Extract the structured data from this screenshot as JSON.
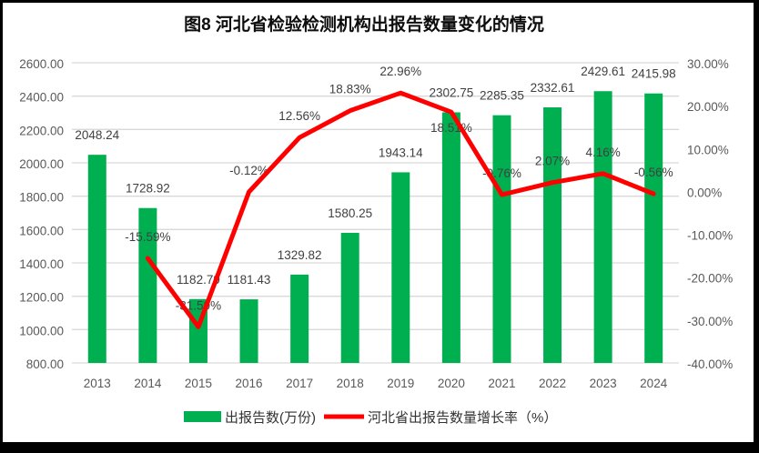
{
  "window": {
    "frame_color": "#000000",
    "paper_color": "#ffffff"
  },
  "chart_data": {
    "type": "bar+line",
    "title": "图8 河北省检验检测机构出报告数量变化的情况",
    "categories": [
      "2013",
      "2014",
      "2015",
      "2016",
      "2017",
      "2018",
      "2019",
      "2020",
      "2021",
      "2022",
      "2023",
      "2024"
    ],
    "series": [
      {
        "name": "出报告数(万份)",
        "type": "bar",
        "axis": "left",
        "values": [
          2048.24,
          1728.92,
          1182.79,
          1181.43,
          1329.82,
          1580.25,
          1943.14,
          2302.75,
          2285.35,
          2332.61,
          2429.61,
          2415.98
        ],
        "labels": [
          "2048.24",
          "1728.92",
          "1182.79",
          "1181.43",
          "1329.82",
          "1580.25",
          "1943.14",
          "2302.75",
          "2285.35",
          "2332.61",
          "2429.61",
          "2415.98"
        ]
      },
      {
        "name": "河北省出报告数量增长率（%）",
        "type": "line",
        "axis": "right",
        "values": [
          null,
          -15.59,
          -31.59,
          -0.12,
          12.56,
          18.83,
          22.96,
          18.51,
          -0.76,
          2.07,
          4.16,
          -0.56
        ],
        "labels": [
          null,
          "-15.59%",
          "-31.59%",
          "-0.12%",
          "12.56%",
          "18.83%",
          "22.96%",
          "18.51%",
          "-0.76%",
          "2.07%",
          "4.16%",
          "-0.56%"
        ],
        "label_positions": [
          null,
          "above",
          "above",
          "above",
          "above",
          "above",
          "above",
          "below",
          "above",
          "above",
          "above",
          "above"
        ]
      }
    ],
    "left_axis": {
      "min": 800,
      "max": 2600,
      "step": 200,
      "tick_labels": [
        "2600.00",
        "2400.00",
        "2200.00",
        "2000.00",
        "1800.00",
        "1600.00",
        "1400.00",
        "1200.00",
        "1000.00",
        "800.00"
      ]
    },
    "right_axis": {
      "min": -40,
      "max": 30,
      "step": 10,
      "tick_labels": [
        "30.00%",
        "20.00%",
        "10.00%",
        "0.00%",
        "-10.00%",
        "-20.00%",
        "-30.00%",
        "-40.00%"
      ]
    },
    "grid": true,
    "legend_position": "bottom",
    "colors": {
      "bar": "#00B050",
      "line": "#FF0000",
      "gridline": "#D9D9D9",
      "tick_text": "#595959",
      "data_label_text": "#404040"
    }
  }
}
